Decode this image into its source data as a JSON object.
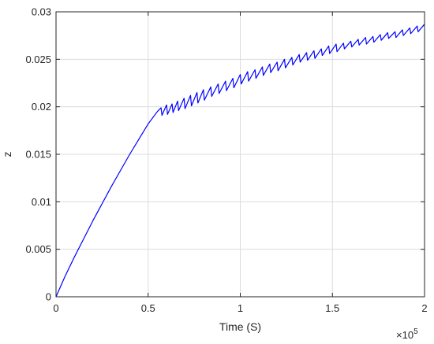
{
  "chart_data": {
    "type": "line",
    "xlabel": "Time (S)",
    "ylabel": "z",
    "x_exponent_label": "×10",
    "x_exponent_power": "5",
    "xlim": [
      0,
      200000
    ],
    "ylim": [
      0,
      0.03
    ],
    "x_ticks": [
      0,
      50000,
      100000,
      150000,
      200000
    ],
    "x_tick_labels": [
      "0",
      "0.5",
      "1",
      "1.5",
      "2"
    ],
    "y_ticks": [
      0,
      0.005,
      0.01,
      0.015,
      0.02,
      0.025,
      0.03
    ],
    "y_tick_labels": [
      "0",
      "0.005",
      "0.01",
      "0.015",
      "0.02",
      "0.025",
      "0.03"
    ],
    "grid": true,
    "series": [
      {
        "color": "#0000ff",
        "x": [
          0,
          5000,
          10000,
          15000,
          20000,
          25000,
          30000,
          35000,
          40000,
          45000,
          50000,
          55000,
          57000,
          57500,
          60000,
          60500,
          63000,
          63500,
          66000,
          66500,
          69500,
          70000,
          73000,
          73500,
          76500,
          77000,
          80000,
          80500,
          84000,
          84500,
          88000,
          88500,
          92000,
          92500,
          96000,
          96500,
          100000,
          100500,
          104000,
          104500,
          108000,
          108500,
          112000,
          112500,
          116000,
          116500,
          120000,
          120500,
          124000,
          124500,
          128000,
          128500,
          132000,
          132500,
          136000,
          136500,
          140000,
          140500,
          144000,
          144500,
          148000,
          148500,
          152000,
          152500,
          156000,
          156500,
          160000,
          160500,
          164000,
          164500,
          168000,
          168500,
          172000,
          172500,
          176000,
          176500,
          180000,
          180500,
          184000,
          184500,
          188000,
          188500,
          192000,
          192500,
          196000,
          196500,
          200000
        ],
        "y": [
          0,
          0.0022,
          0.0042,
          0.0061,
          0.008,
          0.0098,
          0.0116,
          0.0133,
          0.015,
          0.0166,
          0.0182,
          0.0195,
          0.0199,
          0.0191,
          0.0202,
          0.0192,
          0.0203,
          0.0194,
          0.0206,
          0.0196,
          0.0209,
          0.0198,
          0.0212,
          0.0201,
          0.0215,
          0.0204,
          0.0218,
          0.0207,
          0.0221,
          0.0211,
          0.0224,
          0.0214,
          0.0227,
          0.0217,
          0.023,
          0.022,
          0.0234,
          0.0224,
          0.0237,
          0.0227,
          0.0239,
          0.023,
          0.0242,
          0.0233,
          0.0245,
          0.0236,
          0.0247,
          0.0238,
          0.025,
          0.0241,
          0.0252,
          0.0244,
          0.0255,
          0.0247,
          0.0257,
          0.0249,
          0.0259,
          0.0251,
          0.0261,
          0.0254,
          0.0264,
          0.0256,
          0.0266,
          0.0258,
          0.0267,
          0.0261,
          0.0269,
          0.0263,
          0.0271,
          0.0265,
          0.0273,
          0.0266,
          0.0274,
          0.0268,
          0.0276,
          0.027,
          0.0278,
          0.0272,
          0.0279,
          0.0273,
          0.0281,
          0.0275,
          0.0283,
          0.0277,
          0.0285,
          0.0279,
          0.0287
        ]
      }
    ]
  }
}
